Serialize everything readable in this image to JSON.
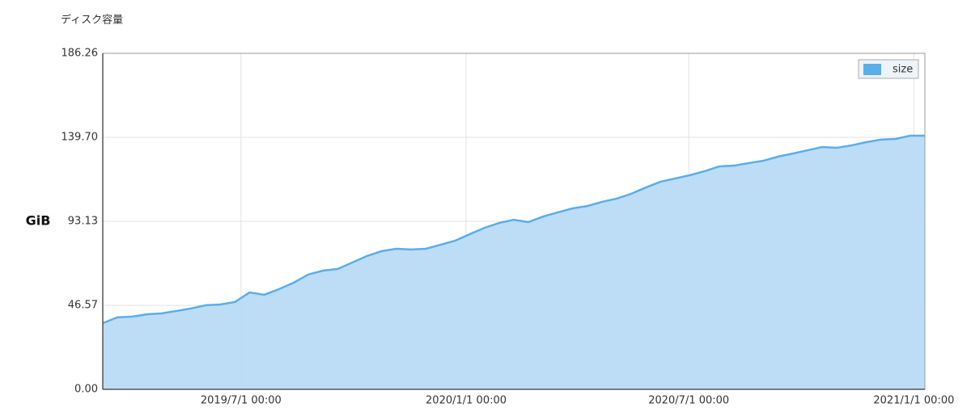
{
  "chart_data": {
    "type": "area",
    "title": "ディスク容量",
    "y_label": "GiB",
    "x": [
      "2019/3/10 00:00",
      "2019/3/22 00:00",
      "2019/4/3 00:00",
      "2019/4/15 00:00",
      "2019/4/27 00:00",
      "2019/5/9 00:00",
      "2019/5/21 00:00",
      "2019/6/2 00:00",
      "2019/6/14 00:00",
      "2019/6/26 00:00",
      "2019/7/8 00:00",
      "2019/7/20 00:00",
      "2019/8/1 00:00",
      "2019/8/13 00:00",
      "2019/8/25 00:00",
      "2019/9/6 00:00",
      "2019/9/18 00:00",
      "2019/9/30 00:00",
      "2019/10/12 00:00",
      "2019/10/24 00:00",
      "2019/11/5 00:00",
      "2019/11/17 00:00",
      "2019/11/29 00:00",
      "2019/12/11 00:00",
      "2019/12/23 00:00",
      "2020/1/4 00:00",
      "2020/1/16 00:00",
      "2020/1/28 00:00",
      "2020/2/9 00:00",
      "2020/2/21 00:00",
      "2020/3/4 00:00",
      "2020/3/16 00:00",
      "2020/3/28 00:00",
      "2020/4/9 00:00",
      "2020/4/21 00:00",
      "2020/5/3 00:00",
      "2020/5/15 00:00",
      "2020/5/27 00:00",
      "2020/6/8 00:00",
      "2020/6/20 00:00",
      "2020/7/2 00:00",
      "2020/7/14 00:00",
      "2020/7/26 00:00",
      "2020/8/7 00:00",
      "2020/8/19 00:00",
      "2020/8/31 00:00",
      "2020/9/12 00:00",
      "2020/9/24 00:00",
      "2020/10/6 00:00",
      "2020/10/18 00:00",
      "2020/10/30 00:00",
      "2020/11/11 00:00",
      "2020/11/23 00:00",
      "2020/12/5 00:00",
      "2020/12/17 00:00",
      "2020/12/29 00:00",
      "2021/1/10 00:00"
    ],
    "series": [
      {
        "name": "size",
        "color": "#5aaeea",
        "fill": "#b9dbf5",
        "values": [
          36.7,
          39.9,
          40.3,
          41.6,
          42.1,
          43.4,
          44.8,
          46.6,
          47.0,
          48.4,
          53.7,
          52.4,
          55.5,
          59.1,
          63.6,
          65.8,
          66.7,
          70.3,
          73.9,
          76.6,
          77.9,
          77.5,
          77.9,
          80.1,
          82.4,
          86.0,
          89.5,
          92.2,
          94.0,
          92.7,
          95.8,
          98.1,
          100.3,
          101.6,
          103.9,
          105.7,
          108.4,
          111.9,
          115.1,
          116.9,
          118.7,
          120.9,
          123.6,
          124.0,
          125.4,
          126.7,
          129.0,
          130.7,
          132.5,
          134.3,
          133.9,
          135.2,
          137.0,
          138.4,
          138.8,
          140.6,
          140.6
        ]
      }
    ],
    "xlim": [
      "2019/3/10 00:00",
      "2021/1/10 00:00"
    ],
    "xticks": [
      "2019/7/1 00:00",
      "2020/1/1 00:00",
      "2020/7/1 00:00",
      "2021/1/1 00:00"
    ],
    "ylim": [
      0,
      186.26
    ],
    "yticks": [
      {
        "value": 0,
        "label": "0.00"
      },
      46.57,
      93.13,
      {
        "value": 139.7,
        "label": "139.70"
      },
      186.26
    ],
    "grid": true,
    "legend": "top-right"
  }
}
